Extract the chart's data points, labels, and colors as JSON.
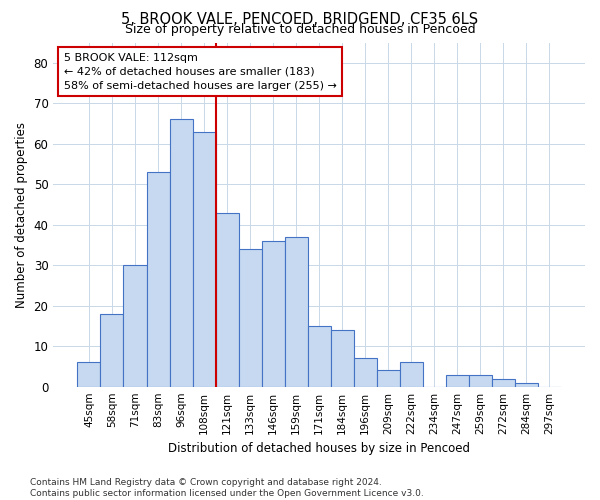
{
  "title1": "5, BROOK VALE, PENCOED, BRIDGEND, CF35 6LS",
  "title2": "Size of property relative to detached houses in Pencoed",
  "xlabel": "Distribution of detached houses by size in Pencoed",
  "ylabel": "Number of detached properties",
  "categories": [
    "45sqm",
    "58sqm",
    "71sqm",
    "83sqm",
    "96sqm",
    "108sqm",
    "121sqm",
    "133sqm",
    "146sqm",
    "159sqm",
    "171sqm",
    "184sqm",
    "196sqm",
    "209sqm",
    "222sqm",
    "234sqm",
    "247sqm",
    "259sqm",
    "272sqm",
    "284sqm",
    "297sqm"
  ],
  "values": [
    6,
    18,
    30,
    53,
    66,
    63,
    43,
    34,
    36,
    37,
    15,
    14,
    7,
    4,
    6,
    0,
    3,
    3,
    2,
    1,
    0
  ],
  "bar_color": "#c6d9f0",
  "bar_edge_color": "#4472c4",
  "vline_x": 6,
  "vline_color": "#cc0000",
  "annotation_line1": "5 BROOK VALE: 112sqm",
  "annotation_line2": "← 42% of detached houses are smaller (183)",
  "annotation_line3": "58% of semi-detached houses are larger (255) →",
  "annotation_box_color": "white",
  "annotation_box_edge": "#cc0000",
  "ylim": [
    0,
    85
  ],
  "yticks": [
    0,
    10,
    20,
    30,
    40,
    50,
    60,
    70,
    80
  ],
  "grid_color": "#c8d8e8",
  "footer": "Contains HM Land Registry data © Crown copyright and database right 2024.\nContains public sector information licensed under the Open Government Licence v3.0.",
  "fig_width": 6.0,
  "fig_height": 5.0,
  "dpi": 100
}
